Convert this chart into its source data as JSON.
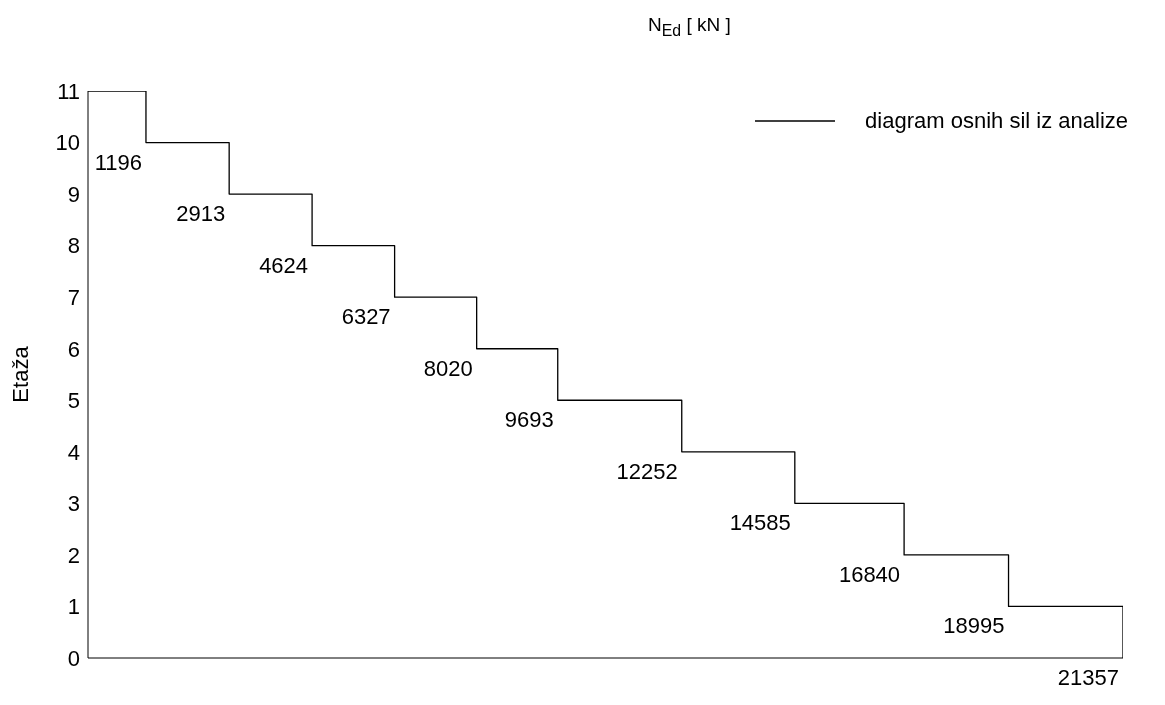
{
  "chart_data": {
    "type": "step",
    "orientation": "horizontal",
    "xlabel": "N$_{Ed}$ [ kN ]",
    "ylabel": "Etaža",
    "categories": [
      "11",
      "10",
      "9",
      "8",
      "7",
      "6",
      "5",
      "4",
      "3",
      "2",
      "1",
      "0"
    ],
    "xlim": [
      0,
      21357
    ],
    "tick_labels": "y",
    "legend": "top right",
    "marker": "none",
    "line_style": "solid",
    "series": [
      {
        "name": "diagram osnih sil iz analize",
        "color": "#000000",
        "values": [
          0,
          1196,
          2913,
          4624,
          6327,
          8020,
          9693,
          12252,
          14585,
          16840,
          18995,
          21357
        ],
        "value_labels": [
          null,
          "1196",
          "2913",
          "4624",
          "6327",
          "8020",
          "9693",
          "12252",
          "14585",
          "16840",
          "18995",
          "21357"
        ]
      }
    ]
  }
}
